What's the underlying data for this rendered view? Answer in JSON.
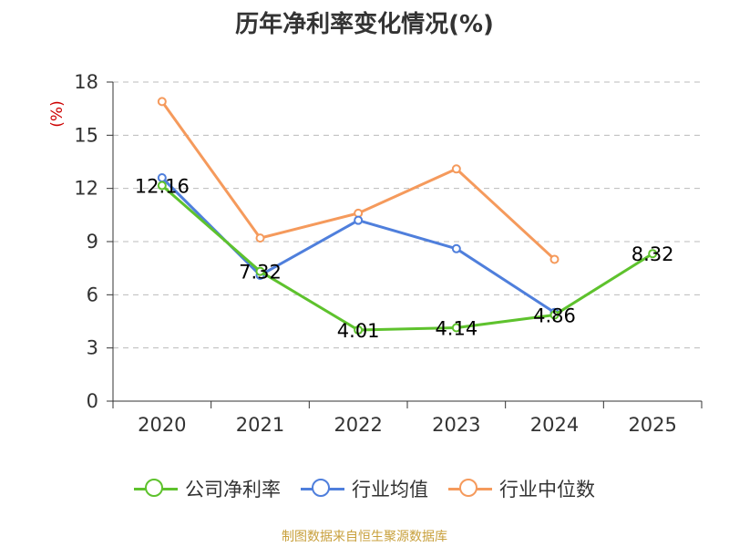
{
  "title": "历年净利率变化情况(%)",
  "footer": "制图数据来自恒生聚源数据库",
  "colors": {
    "footer": "#c8a03c",
    "unit": "#cc0000",
    "axis": "#333333",
    "grid": "#bbbbbb"
  },
  "chart_data": {
    "type": "line",
    "categories": [
      "2020",
      "2021",
      "2022",
      "2023",
      "2024",
      "2025"
    ],
    "ylabel": "(%)",
    "ylim": [
      0,
      18
    ],
    "yticks": [
      0,
      3,
      6,
      9,
      12,
      15,
      18
    ],
    "grid": true,
    "legend_position": "bottom",
    "series": [
      {
        "name": "公司净利率",
        "color": "#5ec22d",
        "values": [
          12.16,
          7.32,
          4.01,
          4.14,
          4.86,
          8.32
        ],
        "labels": [
          "12.16",
          "7.32",
          "4.01",
          "4.14",
          "4.86",
          "8.32"
        ]
      },
      {
        "name": "行业均值",
        "color": "#4f7fdc",
        "values": [
          12.6,
          7.1,
          10.2,
          8.6,
          5.0,
          null
        ],
        "labels": []
      },
      {
        "name": "行业中位数",
        "color": "#f59a5c",
        "values": [
          16.9,
          9.2,
          10.6,
          13.1,
          8.0,
          null
        ],
        "labels": []
      }
    ]
  }
}
